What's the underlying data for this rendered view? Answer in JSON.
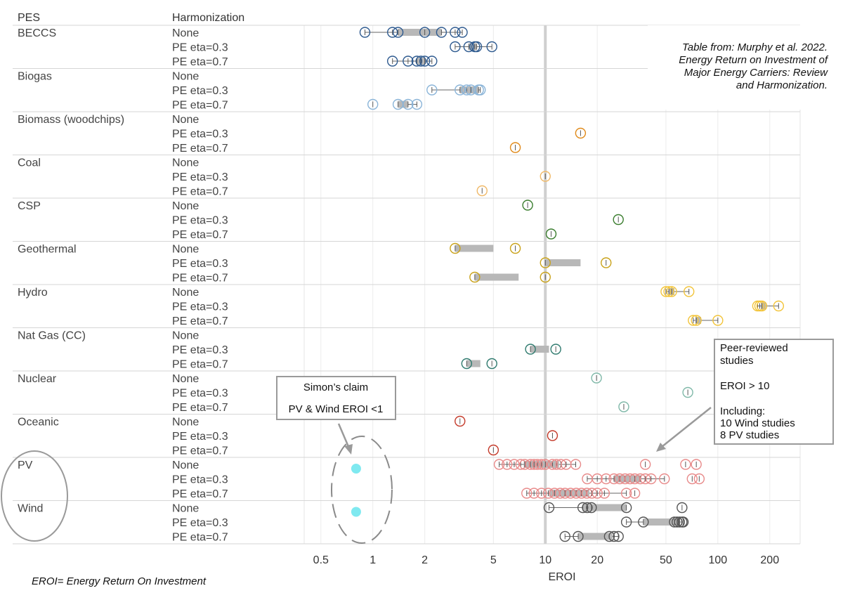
{
  "headers": {
    "pes": "PES",
    "harmonization": "Harmonization"
  },
  "source_note": [
    "Table from: Murphy et al. 2022.",
    "Energy Return on Investment of",
    "Major Energy Carriers: Review",
    "and Harmonization."
  ],
  "footnote": "EROI= Energy Return On Investment",
  "simons_claim": {
    "title": "Simon’s claim",
    "subtitle": "PV & Wind  EROI <1",
    "points": [
      0.8,
      0.8
    ],
    "color": "#7fe9f0"
  },
  "peer_box": [
    "Peer-reviewed",
    "studies",
    "",
    "EROI > 10",
    "",
    "Including:",
    "10 Wind studies",
    "8 PV studies"
  ],
  "colors": {
    "BECCS": "#2e5a8f",
    "Biogas": "#8ab4d8",
    "Biomass (woodchips)": "#e08a1a",
    "Coal": "#f0b968",
    "CSP": "#3a7d2e",
    "Geothermal": "#c9a21a",
    "Hydro": "#f2c43a",
    "Nat Gas (CC)": "#2f7a6e",
    "Nuclear": "#7fb8a8",
    "Oceanic": "#c43a2a",
    "PV": "#e88a8a",
    "Wind": "#555555"
  },
  "chart_data": {
    "type": "scatter",
    "xlabel": "EROI",
    "xscale": "log",
    "xlim": [
      0.4,
      300
    ],
    "ticks": [
      {
        "v": 0.5,
        "label": "0.5"
      },
      {
        "v": 1,
        "label": "1"
      },
      {
        "v": 2,
        "label": "2"
      },
      {
        "v": 5,
        "label": "5"
      },
      {
        "v": 10,
        "label": "10"
      },
      {
        "v": 20,
        "label": "20"
      },
      {
        "v": 50,
        "label": "50"
      },
      {
        "v": 100,
        "label": "100"
      },
      {
        "v": 200,
        "label": "200"
      }
    ],
    "reference_line": 10,
    "groups": [
      {
        "pes": "BECCS",
        "rows": [
          {
            "harm": "None",
            "points": [
              0.9,
              1.3,
              1.4,
              2.0,
              2.5,
              3.0,
              3.3
            ],
            "box": [
              1.4,
              2.5
            ],
            "whisk": [
              0.9,
              3.3
            ]
          },
          {
            "harm": "PE eta=0.3",
            "points": [
              3.0,
              3.6,
              3.9,
              4.0,
              4.9
            ],
            "box": [
              3.6,
              4.0
            ],
            "whisk": [
              3.0,
              4.9
            ]
          },
          {
            "harm": "PE eta=0.7",
            "points": [
              1.3,
              1.6,
              1.8,
              1.9,
              2.0,
              2.2
            ],
            "box": [
              1.8,
              2.0
            ],
            "whisk": [
              1.3,
              2.2
            ]
          }
        ]
      },
      {
        "pes": "Biogas",
        "rows": [
          {
            "harm": "None",
            "points": []
          },
          {
            "harm": "PE eta=0.3",
            "points": [
              2.2,
              3.2,
              3.5,
              3.7,
              4.1,
              4.2
            ],
            "box": [
              3.2,
              4.1
            ],
            "whisk": [
              2.2,
              4.2
            ]
          },
          {
            "harm": "PE eta=0.7",
            "points": [
              1.0,
              1.4,
              1.6,
              1.8
            ],
            "box": [
              1.4,
              1.6
            ],
            "whisk": [
              1.4,
              1.8
            ]
          }
        ]
      },
      {
        "pes": "Biomass (woodchips)",
        "rows": [
          {
            "harm": "None",
            "points": []
          },
          {
            "harm": "PE eta=0.3",
            "points": [
              16
            ]
          },
          {
            "harm": "PE eta=0.7",
            "points": [
              6.7
            ]
          }
        ]
      },
      {
        "pes": "Coal",
        "rows": [
          {
            "harm": "None",
            "points": []
          },
          {
            "harm": "PE eta=0.3",
            "points": [
              10
            ]
          },
          {
            "harm": "PE eta=0.7",
            "points": [
              4.3
            ]
          }
        ]
      },
      {
        "pes": "CSP",
        "rows": [
          {
            "harm": "None",
            "points": [
              7.9
            ]
          },
          {
            "harm": "PE eta=0.3",
            "points": [
              26.5
            ]
          },
          {
            "harm": "PE eta=0.7",
            "points": [
              10.8
            ]
          }
        ]
      },
      {
        "pes": "Geothermal",
        "rows": [
          {
            "harm": "None",
            "points": [
              3.0,
              6.7
            ],
            "box": [
              3.0,
              5.0
            ]
          },
          {
            "harm": "PE eta=0.3",
            "points": [
              10,
              22.5
            ],
            "box": [
              10,
              16
            ]
          },
          {
            "harm": "PE eta=0.7",
            "points": [
              3.9,
              10
            ],
            "box": [
              3.9,
              7.0
            ]
          }
        ]
      },
      {
        "pes": "Hydro",
        "rows": [
          {
            "harm": "None",
            "points": [
              50,
              52,
              54,
              68
            ],
            "box": [
              52,
              56
            ],
            "whisk": [
              50,
              68
            ]
          },
          {
            "harm": "PE eta=0.3",
            "points": [
              170,
              175,
              180,
              225
            ],
            "box": [
              178,
              190
            ],
            "whisk": [
              170,
              225
            ]
          },
          {
            "harm": "PE eta=0.7",
            "points": [
              72,
              75,
              100
            ],
            "box": [
              74,
              80
            ],
            "whisk": [
              72,
              100
            ]
          }
        ]
      },
      {
        "pes": "Nat Gas (CC)",
        "rows": [
          {
            "harm": "None",
            "points": []
          },
          {
            "harm": "PE eta=0.3",
            "points": [
              8.2,
              11.5
            ],
            "box": [
              8.2,
              10.5
            ]
          },
          {
            "harm": "PE eta=0.7",
            "points": [
              3.5,
              4.9
            ],
            "box": [
              3.5,
              4.2
            ]
          }
        ]
      },
      {
        "pes": "Nuclear",
        "rows": [
          {
            "harm": "None",
            "points": [
              19.8
            ]
          },
          {
            "harm": "PE eta=0.3",
            "points": [
              67
            ]
          },
          {
            "harm": "PE eta=0.7",
            "points": [
              28.5
            ]
          }
        ]
      },
      {
        "pes": "Oceanic",
        "rows": [
          {
            "harm": "None",
            "points": [
              3.2
            ]
          },
          {
            "harm": "PE eta=0.3",
            "points": [
              11
            ]
          },
          {
            "harm": "PE eta=0.7",
            "points": [
              5
            ]
          }
        ]
      },
      {
        "pes": "PV",
        "rows": [
          {
            "harm": "None",
            "points": [
              5.4,
              6.0,
              6.6,
              7.2,
              7.6,
              8.2,
              8.6,
              9.0,
              9.5,
              10.0,
              11.0,
              11.6,
              12.3,
              13.2,
              15.0,
              38,
              65,
              75
            ],
            "box": [
              7.5,
              12.0
            ],
            "whisk": [
              5.4,
              15.0
            ]
          },
          {
            "harm": "PE eta=0.3",
            "points": [
              17.5,
              20.0,
              22.5,
              25.0,
              27.0,
              29.0,
              31.0,
              33.0,
              35.5,
              38.0,
              41.0,
              49.0,
              71.0,
              78.0
            ],
            "box": [
              25.0,
              36.0
            ],
            "whisk": [
              17.5,
              49.0
            ]
          },
          {
            "harm": "PE eta=0.7",
            "points": [
              7.8,
              8.6,
              9.5,
              10.4,
              11.3,
              12.2,
              13.0,
              14.0,
              15.1,
              16.2,
              17.4,
              18.6,
              20.0,
              22.0,
              29.5,
              33.0
            ],
            "box": [
              10.5,
              18.0
            ],
            "whisk": [
              7.8,
              29.5
            ]
          }
        ]
      },
      {
        "pes": "Wind",
        "rows": [
          {
            "harm": "None",
            "points": [
              10.5,
              16.5,
              17.5,
              18.5,
              29.5,
              62
            ],
            "box": [
              16.5,
              29.5
            ],
            "whisk": [
              10.5,
              29.5
            ]
          },
          {
            "harm": "PE eta=0.3",
            "points": [
              29.5,
              37,
              56,
              58,
              60,
              62,
              63
            ],
            "box": [
              37,
              60
            ],
            "whisk": [
              29.5,
              63
            ]
          },
          {
            "harm": "PE eta=0.7",
            "points": [
              13,
              15.5,
              23.5,
              25,
              26.5
            ],
            "box": [
              15.5,
              24.5
            ],
            "whisk": [
              13,
              26.5
            ]
          }
        ]
      }
    ]
  }
}
